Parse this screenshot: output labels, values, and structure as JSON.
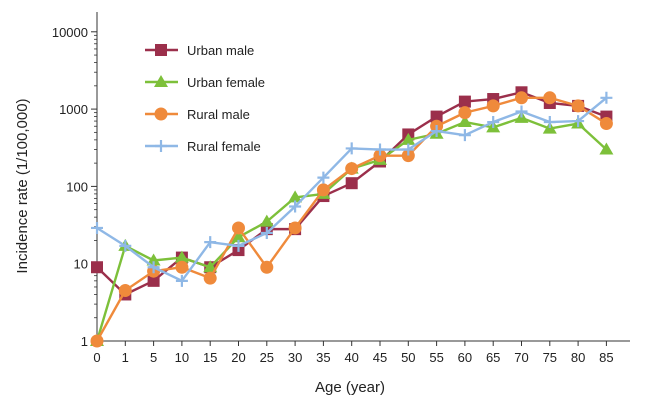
{
  "chart_data": {
    "type": "line",
    "xlabel": "Age (year)",
    "ylabel": "Incidence rate (1/100,000)",
    "y_scale": "log",
    "ylim": [
      1,
      10000
    ],
    "grid": false,
    "legend_position": "top-left",
    "x": [
      "0",
      "1",
      "5",
      "10",
      "15",
      "20",
      "25",
      "30",
      "35",
      "40",
      "45",
      "50",
      "55",
      "60",
      "65",
      "70",
      "75",
      "80",
      "85"
    ],
    "y_ticks": [
      "1",
      "10",
      "100",
      "1000",
      "10000"
    ],
    "series": [
      {
        "name": "Urban male",
        "color": "#9b2f4b",
        "marker": "square",
        "values": [
          9,
          4,
          6,
          12,
          9,
          15,
          28,
          28,
          75,
          110,
          210,
          470,
          800,
          1250,
          1350,
          1650,
          1200,
          1100,
          800
        ]
      },
      {
        "name": "Urban female",
        "color": "#7dc03a",
        "marker": "triangle",
        "values": [
          1,
          17,
          11,
          12,
          9,
          22,
          35,
          72,
          80,
          170,
          220,
          400,
          480,
          680,
          580,
          770,
          560,
          650,
          300
        ]
      },
      {
        "name": "Rural male",
        "color": "#ef8a3b",
        "marker": "circle",
        "values": [
          1,
          4.5,
          8,
          9,
          6.5,
          29,
          9,
          29,
          90,
          170,
          250,
          250,
          600,
          900,
          1100,
          1400,
          1400,
          1100,
          650
        ]
      },
      {
        "name": "Rural female",
        "color": "#8fb8e6",
        "marker": "plus",
        "values": [
          29,
          17,
          9,
          6,
          19,
          17,
          25,
          55,
          130,
          310,
          300,
          300,
          520,
          460,
          680,
          930,
          680,
          700,
          1400
        ]
      }
    ]
  }
}
